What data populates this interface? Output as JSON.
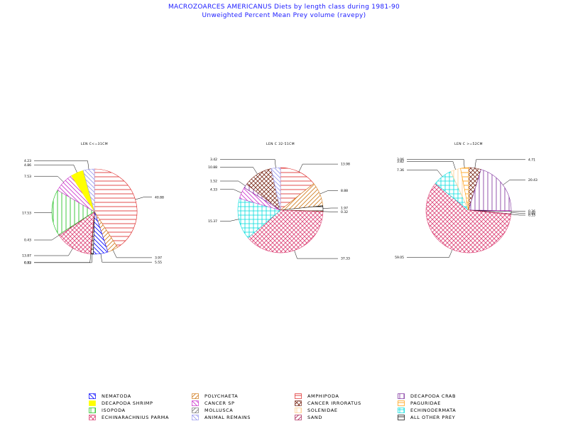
{
  "title": {
    "line1": "MACROZOARCES AMERICANUS Diets by length class during 1981-90",
    "line2": "Unweighted Percent Mean Prey volume (ravepy)"
  },
  "categories": [
    {
      "key": "nematoda",
      "label": "NEMATODA",
      "color": "#0000ff",
      "pattern": "diag-back"
    },
    {
      "key": "polychaeta",
      "label": "POLYCHAETA",
      "color": "#d07a1a",
      "pattern": "diag-fwd"
    },
    {
      "key": "amphipoda",
      "label": "AMPHIPODA",
      "color": "#dd2222",
      "pattern": "horiz"
    },
    {
      "key": "decapoda_crab",
      "label": "DECAPODA CRAB",
      "color": "#7a2a9a",
      "pattern": "vert"
    },
    {
      "key": "decapoda_shrimp",
      "label": "DECAPODA SHRIMP",
      "color": "#ffff00",
      "pattern": "solid"
    },
    {
      "key": "cancer_sp",
      "label": "CANCER SP",
      "color": "#cc33cc",
      "pattern": "diag-back"
    },
    {
      "key": "cancer_irroratus",
      "label": "CANCER IRRORATUS",
      "color": "#7a2a1a",
      "pattern": "cross-diag"
    },
    {
      "key": "paguridae",
      "label": "PAGURIDAE",
      "color": "#ff9900",
      "pattern": "horiz"
    },
    {
      "key": "isopoda",
      "label": "ISOPODA",
      "color": "#11bb11",
      "pattern": "vert"
    },
    {
      "key": "mollusca",
      "label": "MOLLUSCA",
      "color": "#777777",
      "pattern": "diag-fwd"
    },
    {
      "key": "solenidae",
      "label": "SOLENIDAE",
      "color": "#ffcc88",
      "pattern": "vert"
    },
    {
      "key": "echinodermata",
      "label": "ECHINODERMATA",
      "color": "#00dddd",
      "pattern": "grid"
    },
    {
      "key": "echinarachnius_parma",
      "label": "ECHINARACHNIUS PARMA",
      "color": "#dd4477",
      "pattern": "cross-diag"
    },
    {
      "key": "animal_remains",
      "label": "ANIMAL REMAINS",
      "color": "#9999ee",
      "pattern": "diag-back"
    },
    {
      "key": "sand",
      "label": "SAND",
      "color": "#aa2255",
      "pattern": "diag-fwd"
    },
    {
      "key": "all_other_prey",
      "label": "ALL OTHER PREY",
      "color": "#000000",
      "pattern": "horiz"
    }
  ],
  "chart_data": [
    {
      "type": "pie",
      "title": "LEN C<=31CM",
      "slices": [
        {
          "category": "amphipoda",
          "value": 40.88,
          "label": "40.88"
        },
        {
          "category": "polychaeta",
          "value": 3.97,
          "label": "3.97"
        },
        {
          "category": "nematoda",
          "value": 5.55,
          "label": "5.55"
        },
        {
          "category": "all_other_prey",
          "value": 0.82,
          "label": "0.82"
        },
        {
          "category": "cancer_irroratus",
          "value": 0.33,
          "label": "0.33"
        },
        {
          "category": "echinarachnius_parma",
          "value": 13.87,
          "label": "13.87"
        },
        {
          "category": "sand",
          "value": 0.43,
          "label": "0.43"
        },
        {
          "category": "isopoda",
          "value": 17.53,
          "label": "17.53"
        },
        {
          "category": "cancer_sp",
          "value": 7.53,
          "label": "7.53"
        },
        {
          "category": "decapoda_shrimp",
          "value": 4.86,
          "label": "4.86"
        },
        {
          "category": "animal_remains",
          "value": 4.23,
          "label": "4.23"
        }
      ]
    },
    {
      "type": "pie",
      "title": "LEN C 32-51CM",
      "slices": [
        {
          "category": "amphipoda",
          "value": 13.98,
          "label": "13.98"
        },
        {
          "category": "polychaeta",
          "value": 8.88,
          "label": "8.88"
        },
        {
          "category": "all_other_prey",
          "value": 1.97,
          "label": "1.97"
        },
        {
          "category": "cancer_irroratus",
          "value": 0.32,
          "label": "0.32"
        },
        {
          "category": "echinarachnius_parma",
          "value": 37.33,
          "label": "37.33"
        },
        {
          "category": "echinodermata",
          "value": 15.37,
          "label": "15.37"
        },
        {
          "category": "cancer_sp",
          "value": 4.33,
          "label": "4.33"
        },
        {
          "category": "decapoda_crab",
          "value": 1.52,
          "label": "1.52"
        },
        {
          "category": "cancer_irroratus",
          "value": 10.88,
          "label": "10.88"
        },
        {
          "category": "animal_remains",
          "value": 3.42,
          "label": "3.42"
        }
      ]
    },
    {
      "type": "pie",
      "title": "LEN C >=52CM",
      "slices": [
        {
          "category": "cancer_irroratus",
          "value": 4.71,
          "label": "4.71"
        },
        {
          "category": "decapoda_crab",
          "value": 20.43,
          "label": "20.43"
        },
        {
          "category": "cancer_sp",
          "value": 0.36,
          "label": "0.36"
        },
        {
          "category": "all_other_prey",
          "value": 0.88,
          "label": "0.88"
        },
        {
          "category": "sand",
          "value": 0.33,
          "label": "0.33"
        },
        {
          "category": "echinarachnius_parma",
          "value": 59.05,
          "label": "59.05"
        },
        {
          "category": "echinodermata",
          "value": 7.36,
          "label": "7.36"
        },
        {
          "category": "solenidae",
          "value": 3.82,
          "label": "3.82"
        },
        {
          "category": "paguridae",
          "value": 3.06,
          "label": "3.06"
        }
      ]
    }
  ]
}
